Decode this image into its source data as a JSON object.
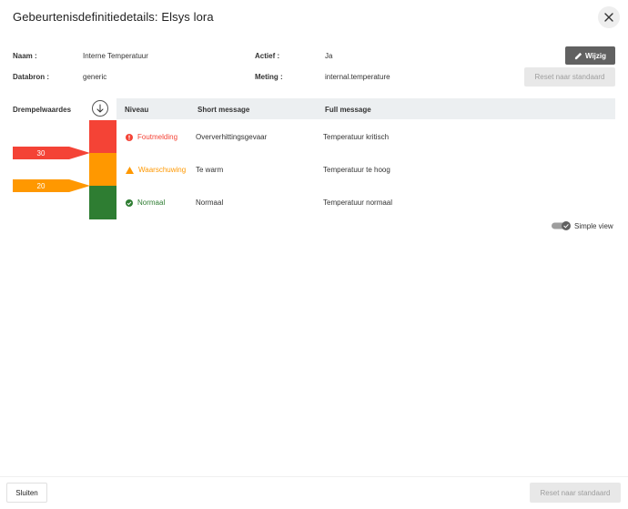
{
  "dialog": {
    "title": "Gebeurtenisdefinitiedetails: Elsys lora"
  },
  "details": {
    "name_label": "Naam :",
    "name_value": "Interne Temperatuur",
    "active_label": "Actief :",
    "active_value": "Ja",
    "datasource_label": "Databron :",
    "datasource_value": "generic",
    "measurement_label": "Meting :",
    "measurement_value": "internal.temperature"
  },
  "buttons": {
    "edit_label": "Wijzig",
    "reset_label": "Reset naar standaard",
    "close_label": "Sluiten"
  },
  "thresholds": {
    "label": "Drempelwaardes",
    "markers": [
      {
        "value": "30",
        "color": "#f44336"
      },
      {
        "value": "20",
        "color": "#ff9800"
      }
    ]
  },
  "table": {
    "headers": {
      "level": "Niveau",
      "short": "Short message",
      "full": "Full message"
    },
    "rows": [
      {
        "level": "Foutmelding",
        "short": "Oververhittingsgevaar",
        "full": "Temperatuur kritisch",
        "color": "#f44336",
        "icon": "error-icon"
      },
      {
        "level": "Waarschuwing",
        "short": "Te warm",
        "full": "Temperatuur te hoog",
        "color": "#ff9800",
        "icon": "warning-icon"
      },
      {
        "level": "Normaal",
        "short": "Normaal",
        "full": "Temperatuur normaal",
        "color": "#2e7d32",
        "icon": "check-circle-icon"
      }
    ]
  },
  "view": {
    "simple_label": "Simple view",
    "simple_enabled": true
  }
}
